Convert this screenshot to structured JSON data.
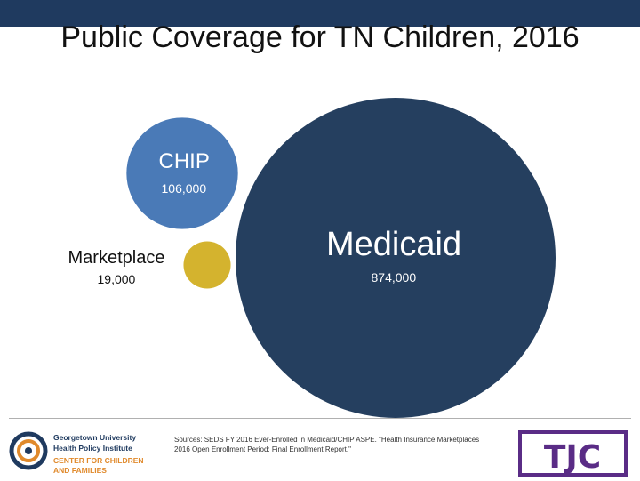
{
  "title": "Public Coverage for TN Children, 2016",
  "chart_data": {
    "type": "bubble",
    "title": "Public Coverage for TN Children, 2016",
    "series": [
      {
        "name": "Medicaid",
        "value": 874000,
        "value_label": "874,000",
        "color": "#253f5f"
      },
      {
        "name": "CHIP",
        "value": 106000,
        "value_label": "106,000",
        "color": "#4a7ab7"
      },
      {
        "name": "Marketplace",
        "value": 19000,
        "value_label": "19,000",
        "color": "#d4b32e"
      }
    ]
  },
  "sources": "Sources: SEDS FY 2016 Ever-Enrolled in Medicaid/CHIP ASPE. \"Health Insurance Marketplaces 2016 Open Enrollment Period: Final Enrollment Report.\"",
  "logos": {
    "left_line1": "Georgetown University",
    "left_line2": "Health Policy Institute",
    "left_line3": "CENTER FOR CHILDREN",
    "left_line4": "AND FAMILIES",
    "right_text": "TJC",
    "colors": {
      "navy": "#1f3a5f",
      "orange": "#e08a2c",
      "purple": "#5a2c86"
    }
  }
}
